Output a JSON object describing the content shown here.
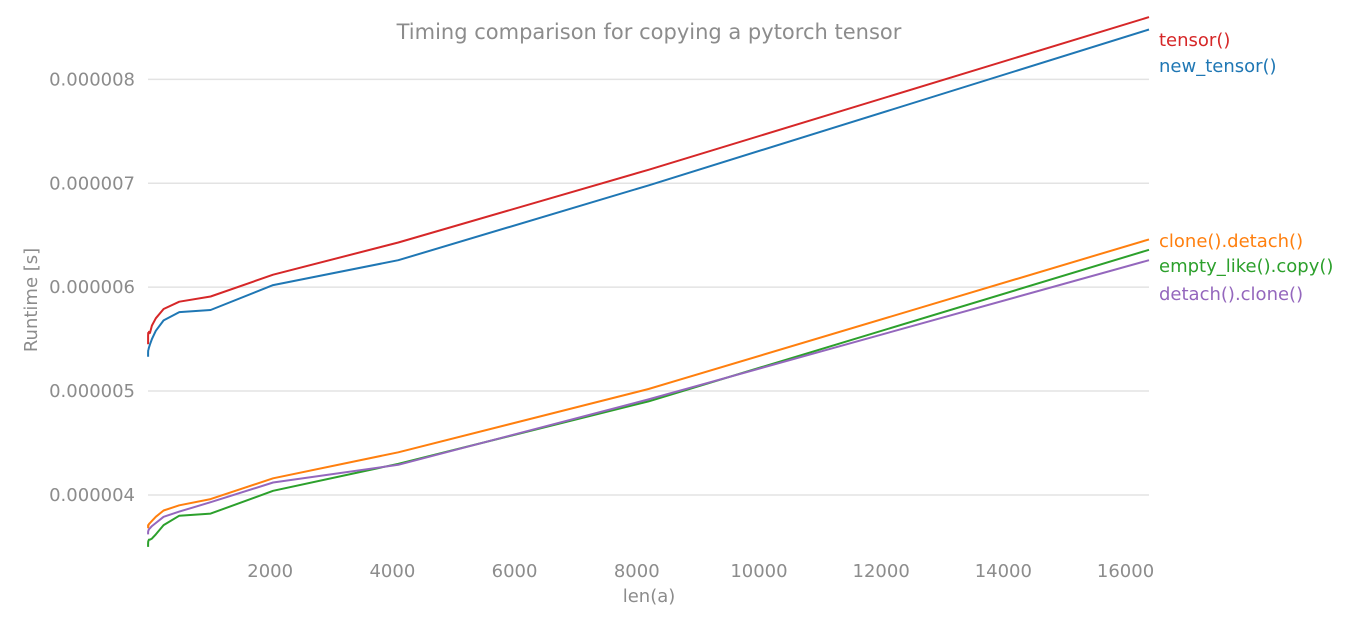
{
  "chart_data": {
    "type": "line",
    "title": "Timing comparison for copying a pytorch tensor",
    "xlabel": "len(a)",
    "ylabel": "Runtime [s]",
    "xlim": [
      0,
      16384
    ],
    "ylim": [
      3.47e-06,
      8.62e-06
    ],
    "xticks": [
      2000,
      4000,
      6000,
      8000,
      10000,
      12000,
      14000,
      16000
    ],
    "xtick_labels": [
      "2000",
      "4000",
      "6000",
      "8000",
      "10000",
      "12000",
      "14000",
      "16000"
    ],
    "yticks": [
      4e-06,
      5e-06,
      6e-06,
      7e-06,
      8e-06
    ],
    "ytick_labels": [
      "0.000004",
      "0.000005",
      "0.000006",
      "0.000007",
      "0.000008"
    ],
    "grid": "horizontal",
    "legend": "right, labels at line ends",
    "x": [
      1,
      2,
      4,
      8,
      16,
      32,
      64,
      128,
      256,
      512,
      1024,
      2048,
      4096,
      8192,
      16384
    ],
    "series": [
      {
        "name": "tensor()",
        "color": "#d62728",
        "values": [
          5.45e-06,
          5.53e-06,
          5.56e-06,
          5.55e-06,
          5.57e-06,
          5.56e-06,
          5.63e-06,
          5.7e-06,
          5.79e-06,
          5.86e-06,
          5.91e-06,
          6.12e-06,
          6.43e-06,
          7.13e-06,
          8.6e-06
        ]
      },
      {
        "name": "new_tensor()",
        "color": "#1f77b4",
        "values": [
          5.33e-06,
          5.37e-06,
          5.39e-06,
          5.4e-06,
          5.42e-06,
          5.45e-06,
          5.5e-06,
          5.58e-06,
          5.68e-06,
          5.76e-06,
          5.78e-06,
          6.02e-06,
          6.26e-06,
          6.98e-06,
          8.48e-06
        ]
      },
      {
        "name": "clone().detach()",
        "color": "#ff7f0e",
        "values": [
          3.68e-06,
          3.71e-06,
          3.69e-06,
          3.71e-06,
          3.72e-06,
          3.73e-06,
          3.75e-06,
          3.79e-06,
          3.85e-06,
          3.9e-06,
          3.96e-06,
          4.16e-06,
          4.41e-06,
          5.02e-06,
          6.46e-06
        ]
      },
      {
        "name": "empty_like().copy()",
        "color": "#2ca02c",
        "values": [
          3.5e-06,
          3.53e-06,
          3.55e-06,
          3.56e-06,
          3.57e-06,
          3.57e-06,
          3.58e-06,
          3.62e-06,
          3.71e-06,
          3.8e-06,
          3.82e-06,
          4.04e-06,
          4.3e-06,
          4.9e-06,
          6.36e-06
        ]
      },
      {
        "name": "detach().clone()",
        "color": "#9467bd",
        "values": [
          3.62e-06,
          3.64e-06,
          3.65e-06,
          3.66e-06,
          3.67e-06,
          3.68e-06,
          3.7e-06,
          3.73e-06,
          3.79e-06,
          3.84e-06,
          3.93e-06,
          4.12e-06,
          4.29e-06,
          4.92e-06,
          6.26e-06
        ]
      }
    ]
  }
}
